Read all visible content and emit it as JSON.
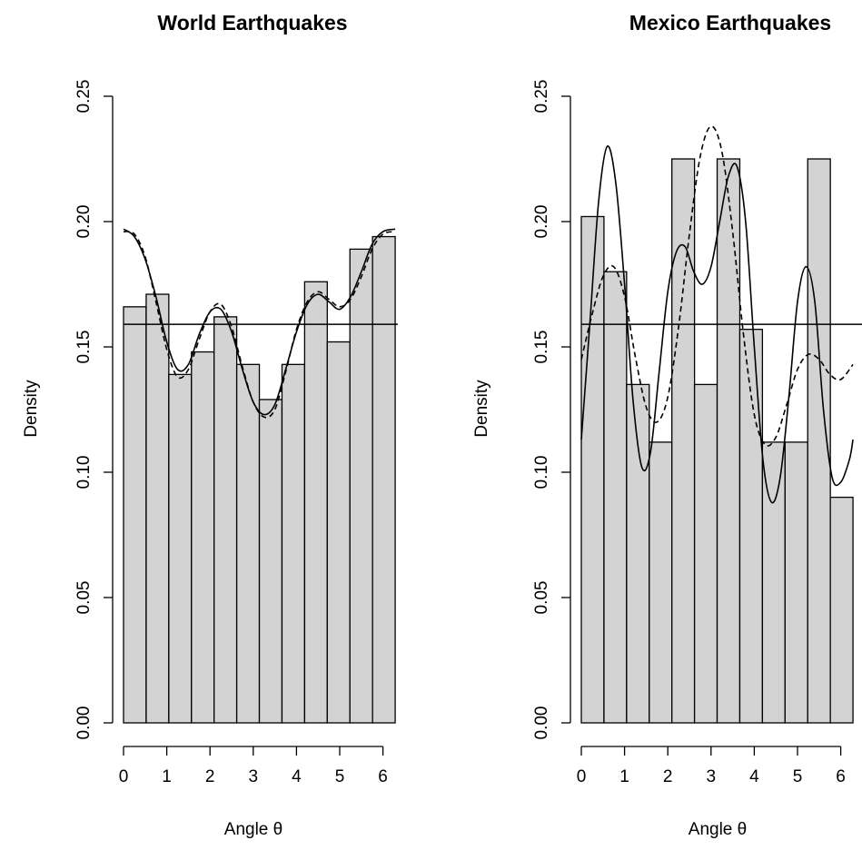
{
  "chart_data": [
    {
      "type": "bar",
      "title": "World Earthquakes",
      "xlabel": "Angle θ",
      "ylabel": "Density",
      "xlim": [
        0,
        6.283
      ],
      "ylim": [
        0,
        0.25
      ],
      "xticks": [
        "0",
        "1",
        "2",
        "3",
        "4",
        "5",
        "6"
      ],
      "yticks": [
        "0.00",
        "0.05",
        "0.10",
        "0.15",
        "0.20",
        "0.25"
      ],
      "grid": false,
      "bin_width": 0.5236,
      "values": [
        0.166,
        0.171,
        0.139,
        0.148,
        0.162,
        0.143,
        0.129,
        0.143,
        0.176,
        0.152,
        0.189,
        0.194
      ],
      "reference_line": 0.159,
      "series": [
        {
          "style": "solid",
          "x": [
            0,
            0.25,
            0.5,
            0.75,
            1.0,
            1.25,
            1.5,
            1.75,
            2.0,
            2.25,
            2.5,
            2.75,
            3.0,
            3.25,
            3.5,
            3.75,
            4.0,
            4.25,
            4.5,
            4.75,
            5.0,
            5.25,
            5.5,
            5.75,
            6.0,
            6.283
          ],
          "y": [
            0.197,
            0.194,
            0.185,
            0.17,
            0.152,
            0.141,
            0.143,
            0.155,
            0.164,
            0.165,
            0.156,
            0.141,
            0.128,
            0.123,
            0.127,
            0.141,
            0.156,
            0.167,
            0.171,
            0.168,
            0.165,
            0.17,
            0.18,
            0.191,
            0.196,
            0.197
          ]
        },
        {
          "style": "dashed",
          "x": [
            0,
            0.25,
            0.5,
            0.75,
            1.0,
            1.25,
            1.5,
            1.75,
            2.0,
            2.25,
            2.5,
            2.75,
            3.0,
            3.25,
            3.5,
            3.75,
            4.0,
            4.25,
            4.5,
            4.75,
            5.0,
            5.25,
            5.5,
            5.75,
            6.0,
            6.283
          ],
          "y": [
            0.196,
            0.195,
            0.186,
            0.168,
            0.149,
            0.138,
            0.141,
            0.153,
            0.164,
            0.167,
            0.158,
            0.142,
            0.128,
            0.122,
            0.125,
            0.14,
            0.157,
            0.168,
            0.172,
            0.169,
            0.166,
            0.169,
            0.178,
            0.189,
            0.195,
            0.196
          ]
        }
      ]
    },
    {
      "type": "bar",
      "title": "Mexico Earthquakes",
      "xlabel": "Angle θ",
      "ylabel": "Density",
      "xlim": [
        0,
        6.283
      ],
      "ylim": [
        0,
        0.25
      ],
      "xticks": [
        "0",
        "1",
        "2",
        "3",
        "4",
        "5",
        "6"
      ],
      "yticks": [
        "0.00",
        "0.05",
        "0.10",
        "0.15",
        "0.20",
        "0.25"
      ],
      "grid": false,
      "bin_width": 0.5236,
      "values": [
        0.202,
        0.18,
        0.135,
        0.112,
        0.225,
        0.135,
        0.225,
        0.157,
        0.112,
        0.112,
        0.225,
        0.09
      ],
      "reference_line": 0.159,
      "series": [
        {
          "style": "solid",
          "x": [
            0,
            0.2,
            0.4,
            0.6,
            0.8,
            1.0,
            1.2,
            1.4,
            1.6,
            1.8,
            2.0,
            2.2,
            2.4,
            2.6,
            2.8,
            3.0,
            3.2,
            3.4,
            3.6,
            3.8,
            4.0,
            4.2,
            4.4,
            4.6,
            4.8,
            5.0,
            5.2,
            5.4,
            5.6,
            5.8,
            6.0,
            6.2,
            6.283
          ],
          "y": [
            0.113,
            0.16,
            0.208,
            0.23,
            0.215,
            0.175,
            0.128,
            0.102,
            0.108,
            0.14,
            0.172,
            0.188,
            0.19,
            0.18,
            0.175,
            0.182,
            0.2,
            0.218,
            0.222,
            0.2,
            0.15,
            0.105,
            0.088,
            0.098,
            0.13,
            0.168,
            0.182,
            0.168,
            0.125,
            0.098,
            0.096,
            0.105,
            0.113
          ]
        },
        {
          "style": "dashed",
          "x": [
            0,
            0.25,
            0.5,
            0.75,
            1.0,
            1.25,
            1.5,
            1.75,
            2.0,
            2.25,
            2.5,
            2.75,
            3.0,
            3.25,
            3.5,
            3.75,
            4.0,
            4.25,
            4.5,
            4.75,
            5.0,
            5.25,
            5.5,
            5.75,
            6.0,
            6.283
          ],
          "y": [
            0.145,
            0.163,
            0.178,
            0.182,
            0.17,
            0.146,
            0.126,
            0.12,
            0.13,
            0.158,
            0.195,
            0.226,
            0.238,
            0.228,
            0.196,
            0.155,
            0.123,
            0.111,
            0.114,
            0.127,
            0.141,
            0.147,
            0.145,
            0.139,
            0.137,
            0.143
          ]
        }
      ]
    }
  ]
}
